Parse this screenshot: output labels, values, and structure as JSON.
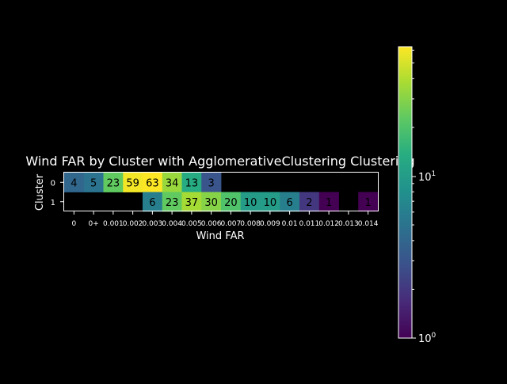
{
  "chart_data": {
    "type": "heatmap",
    "title": "Wind FAR by Cluster with AgglomerativeClustering Clustering",
    "xlabel": "Wind FAR",
    "ylabel": "Cluster",
    "x_categories": [
      "0",
      "0+",
      "0.001",
      "0.002",
      "0.003",
      "0.004",
      "0.005",
      "0.006",
      "0.007",
      "0.008",
      "0.009",
      "0.01",
      "0.011",
      "0.012",
      "0.013",
      "0.014"
    ],
    "x_tick_labels": [
      "0",
      "0+",
      "0.001",
      "0.002",
      "0.003",
      "0.004",
      "0.005",
      "0.006",
      "0.007",
      "0.008",
      "0.009",
      "0.01",
      "0.011",
      "0.012",
      "0.013",
      "0.014"
    ],
    "y_categories": [
      "0",
      "1"
    ],
    "values": [
      [
        4,
        5,
        23,
        59,
        63,
        34,
        13,
        3,
        null,
        null,
        null,
        null,
        null,
        null,
        null,
        null
      ],
      [
        null,
        null,
        null,
        null,
        6,
        23,
        37,
        30,
        20,
        10,
        10,
        6,
        2,
        1,
        null,
        1
      ]
    ],
    "colorbar": {
      "scale": "log",
      "min": 1,
      "max": 63,
      "colormap": "viridis",
      "tick_base": "10",
      "tick_exponents": [
        "0",
        "1"
      ]
    }
  },
  "colors": {
    "background": "#000000",
    "foreground": "#ffffff",
    "cell_text": "#000000"
  }
}
